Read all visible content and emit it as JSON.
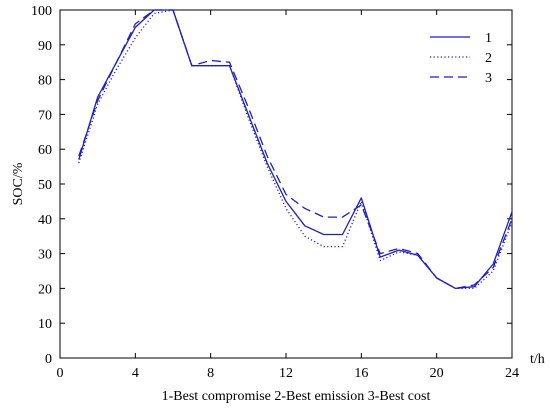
{
  "chart_data": {
    "type": "line",
    "xlabel": "t/h",
    "ylabel": "SOC/%",
    "caption": "1-Best compromise 2-Best emission 3-Best cost",
    "xlim": [
      0,
      24
    ],
    "ylim": [
      0,
      100
    ],
    "x_ticks": [
      "0",
      "4",
      "8",
      "12",
      "16",
      "20",
      "24"
    ],
    "y_ticks": [
      "0",
      "10",
      "20",
      "30",
      "40",
      "50",
      "60",
      "70",
      "80",
      "90",
      "100"
    ],
    "grid": false,
    "legend_position": "top-right",
    "line_color": "#1f1fbf",
    "series": [
      {
        "name": "1",
        "style": "solid",
        "x": [
          1,
          2,
          3,
          4,
          5,
          6,
          7,
          8,
          9,
          10,
          11,
          12,
          13,
          14,
          15,
          16,
          17,
          18,
          19,
          20,
          21,
          22,
          23,
          24
        ],
        "y": [
          57,
          75,
          85,
          95,
          100,
          100,
          84,
          84,
          84,
          70,
          56,
          45,
          38,
          35.5,
          35.5,
          46,
          29,
          31,
          29.5,
          23,
          20,
          20.5,
          27,
          42
        ]
      },
      {
        "name": "2",
        "style": "dotted",
        "x": [
          1,
          2,
          3,
          4,
          5,
          6,
          7,
          8,
          9,
          10,
          11,
          12,
          13,
          14,
          15,
          16,
          17,
          18,
          19,
          20,
          21,
          22,
          23,
          24
        ],
        "y": [
          56,
          73,
          83,
          92,
          99,
          100,
          84,
          84,
          84,
          69,
          55,
          43,
          35,
          32,
          32,
          45,
          28,
          30.5,
          29.5,
          23,
          20,
          20,
          25,
          39
        ]
      },
      {
        "name": "3",
        "style": "dashed",
        "x": [
          1,
          2,
          3,
          4,
          5,
          6,
          7,
          8,
          9,
          10,
          11,
          12,
          13,
          14,
          15,
          16,
          17,
          18,
          19,
          20,
          21,
          22,
          23,
          24
        ],
        "y": [
          58,
          74,
          85,
          96,
          100,
          100,
          84,
          85.5,
          85,
          72,
          58,
          47,
          43,
          40.5,
          40.5,
          44,
          30,
          31.5,
          30,
          23,
          20,
          21,
          26,
          40
        ]
      }
    ]
  }
}
